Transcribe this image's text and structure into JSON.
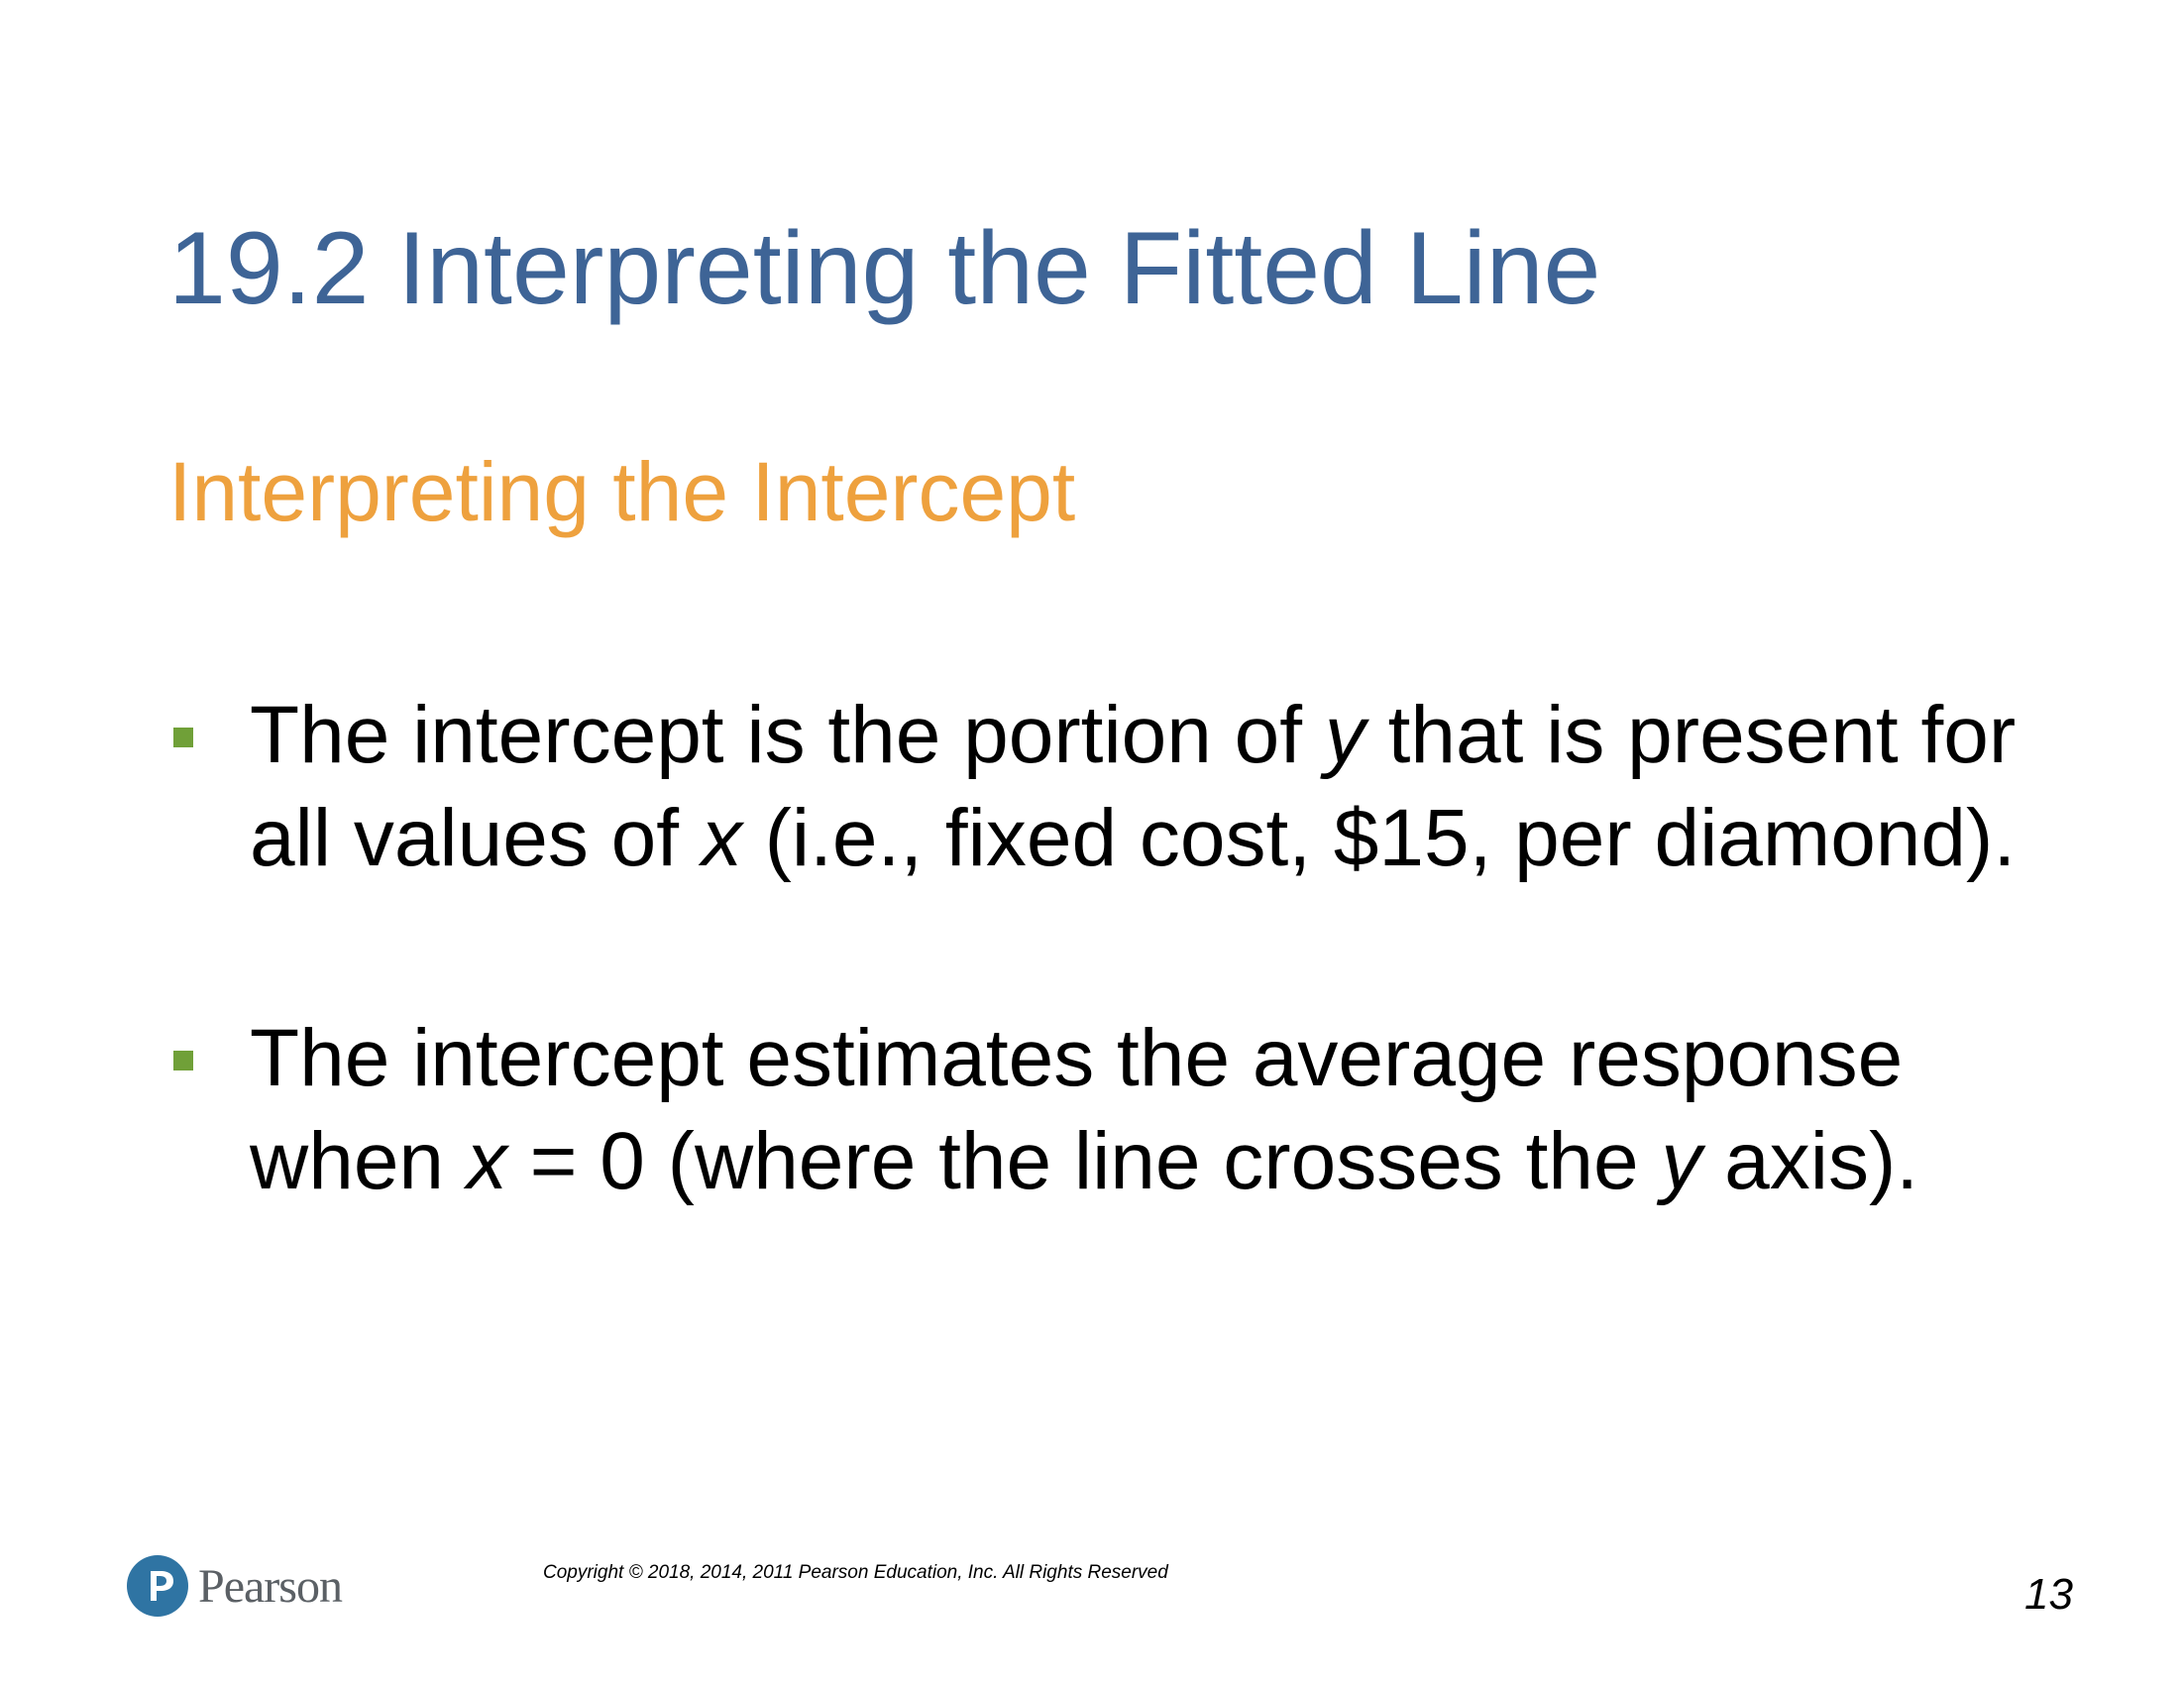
{
  "slide": {
    "title": "19.2 Interpreting the Fitted Line",
    "subtitle": "Interpreting the Intercept"
  },
  "bullets": [
    {
      "parts": [
        "The intercept is the portion of ",
        "y",
        " that is present for all values of ",
        "x",
        " (i.e., fixed cost, $15, per diamond)."
      ]
    },
    {
      "parts": [
        "The intercept estimates the average response when ",
        "x",
        " = 0 (where the line crosses the ",
        "y",
        " axis)."
      ]
    }
  ],
  "footer": {
    "logo_text": "Pearson",
    "copyright": "Copyright © 2018, 2014, 2011 Pearson Education, Inc. All Rights Reserved",
    "page_number": "13"
  },
  "colors": {
    "title": "#3E6496",
    "subtitle": "#EEA13E",
    "bullet_marker": "#70A038",
    "logo": "#2F74A3"
  },
  "icons": {
    "logo": "pearson-logo-icon",
    "bullet": "square-bullet-icon"
  }
}
